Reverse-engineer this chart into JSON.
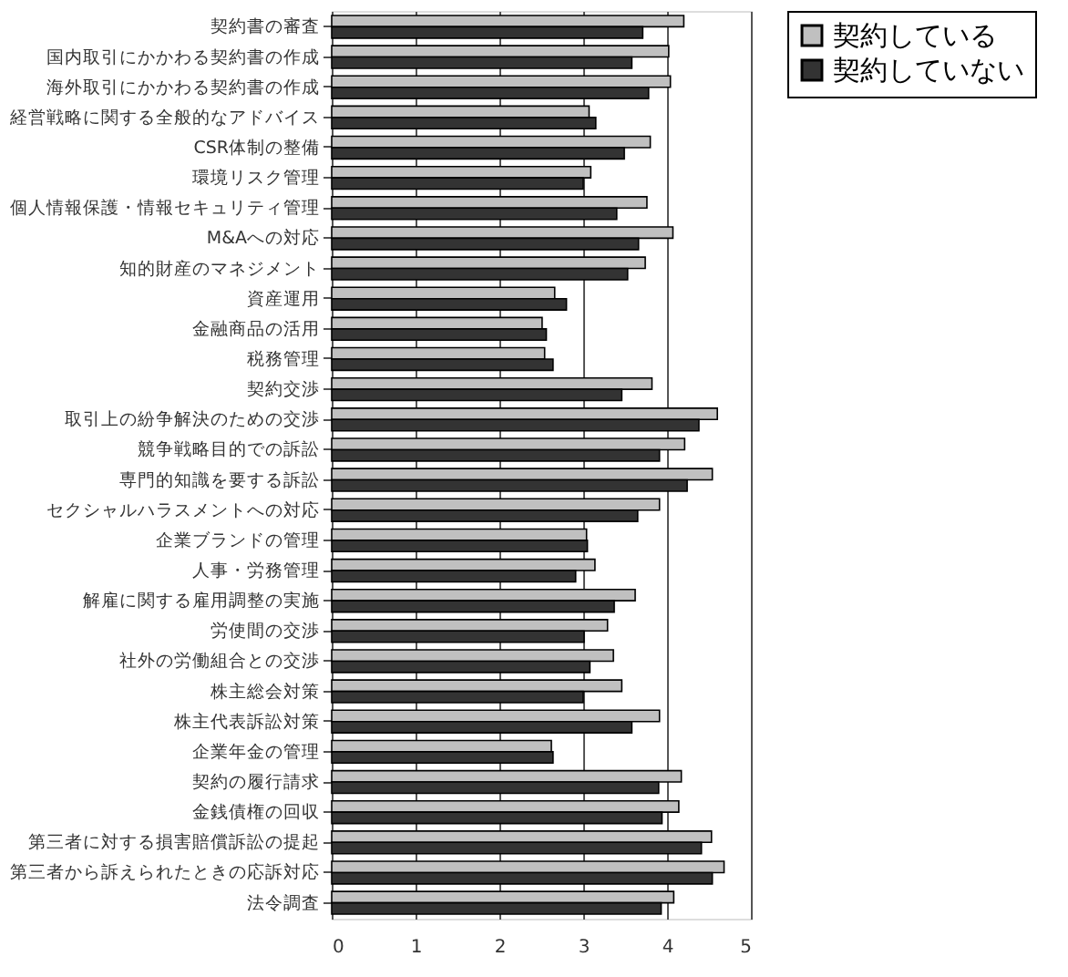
{
  "chart_data": {
    "type": "bar",
    "orientation": "horizontal",
    "categories": [
      "契約書の審査",
      "国内取引にかかわる契約書の作成",
      "海外取引にかかわる契約書の作成",
      "経営戦略に関する全般的なアドバイス",
      "CSR体制の整備",
      "環境リスク管理",
      "個人情報保護・情報セキュリティ管理",
      "M&Aへの対応",
      "知的財産のマネジメント",
      "資産運用",
      "金融商品の活用",
      "税務管理",
      "契約交渉",
      "取引上の紛争解決のための交渉",
      "競争戦略目的での訴訟",
      "専門的知識を要する訴訟",
      "セクシャルハラスメントへの対応",
      "企業ブランドの管理",
      "人事・労務管理",
      "解雇に関する雇用調整の実施",
      "労使間の交渉",
      "社外の労働組合との交渉",
      "株主総会対策",
      "株主代表訴訟対策",
      "企業年金の管理",
      "契約の履行請求",
      "金銭債権の回収",
      "第三者に対する損害賠償訴訟の提起",
      "第三者から訴えられたときの応訴対応",
      "法令調査"
    ],
    "series": [
      {
        "name": "契約している",
        "color": "#c0c0c0",
        "values": [
          4.2,
          4.02,
          4.04,
          3.07,
          3.8,
          3.09,
          3.76,
          4.07,
          3.74,
          2.66,
          2.51,
          2.54,
          3.82,
          4.6,
          4.21,
          4.54,
          3.91,
          3.04,
          3.14,
          3.62,
          3.29,
          3.36,
          3.46,
          3.91,
          2.62,
          4.17,
          4.14,
          4.53,
          4.68,
          4.08
        ]
      },
      {
        "name": "契約していない",
        "color": "#333333",
        "values": [
          3.71,
          3.58,
          3.78,
          3.15,
          3.49,
          3.0,
          3.4,
          3.66,
          3.53,
          2.8,
          2.56,
          2.64,
          3.46,
          4.38,
          3.91,
          4.24,
          3.65,
          3.05,
          2.91,
          3.37,
          3.01,
          3.08,
          3.0,
          3.58,
          2.64,
          3.9,
          3.94,
          4.41,
          4.54,
          3.93
        ]
      }
    ],
    "xlim": [
      0,
      5
    ],
    "xticks": [
      0,
      1,
      2,
      3,
      4,
      5
    ],
    "grid": "x",
    "legend": "right"
  }
}
